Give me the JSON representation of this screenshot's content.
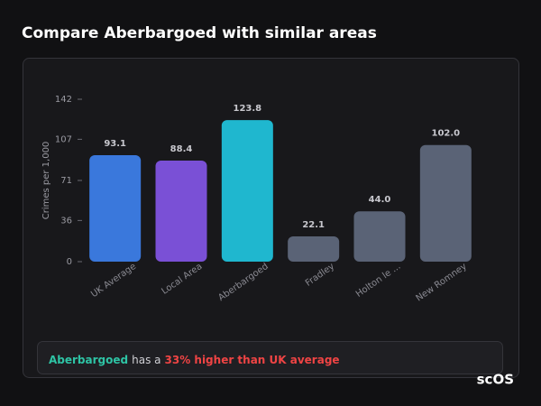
{
  "title": "Compare Aberbargoed with similar areas",
  "chart_data": {
    "type": "bar",
    "y_label": "Crimes per 1,000",
    "categories": [
      "UK Average",
      "Local Area",
      "Aberbargoed",
      "Fradley",
      "Holton le ...",
      "New Romney"
    ],
    "values": [
      93.1,
      88.4,
      123.8,
      22.1,
      44.0,
      102.0
    ],
    "value_labels": [
      "93.1",
      "88.4",
      "123.8",
      "22.1",
      "44.0",
      "102.0"
    ],
    "colors": [
      "#3a78dc",
      "#7a50d6",
      "#1fb7cf",
      "#5a6376",
      "#5a6376",
      "#5a6376"
    ],
    "ylim": [
      0,
      142
    ],
    "yticks": [
      0,
      36,
      71,
      107,
      142
    ]
  },
  "summary": {
    "area": "Aberbargoed",
    "text": "has a",
    "highlight": "33% higher than UK average"
  },
  "logo": "scOS"
}
